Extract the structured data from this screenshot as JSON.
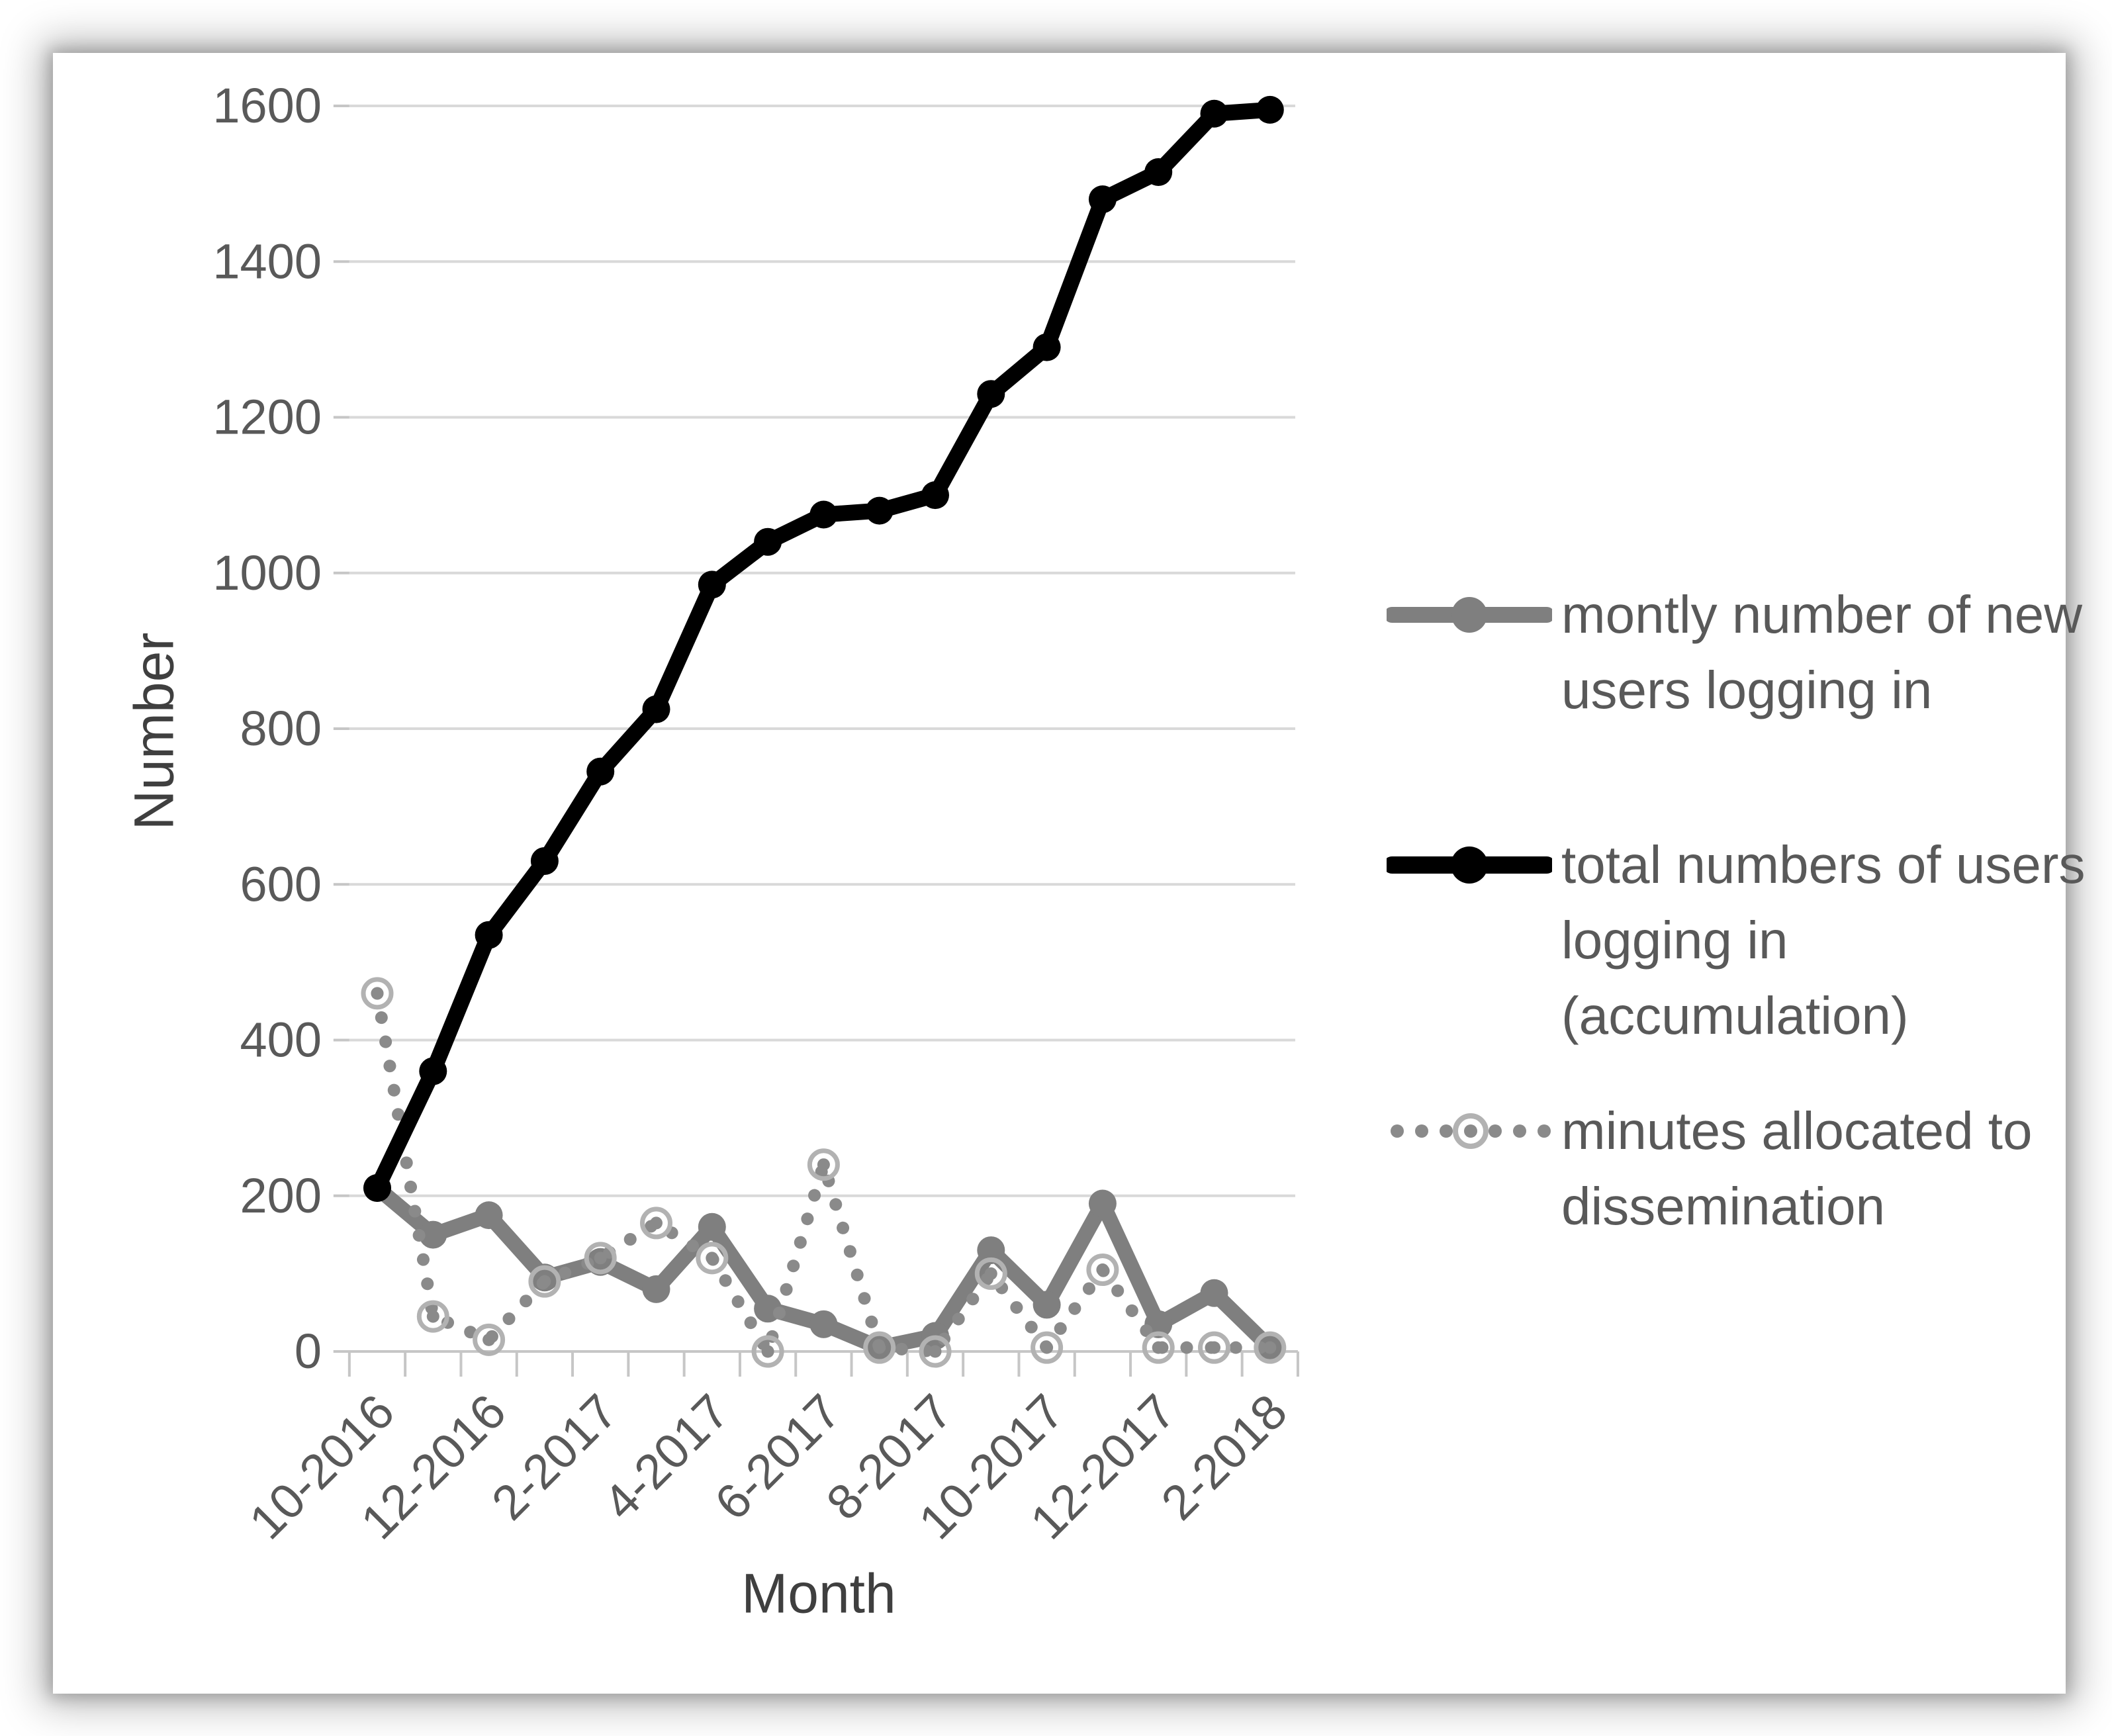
{
  "figure": {
    "kind": "line-chart-figure",
    "background": "#ffffff",
    "text_color_titles": "#3f3f3f",
    "text_color_ticks": "#595959",
    "gridline_color": "#d9d9d9",
    "axisline_color": "#c6c6c6"
  },
  "chart_data": {
    "type": "line",
    "title": "",
    "xlabel": "Month",
    "ylabel": "Number",
    "ylim": [
      0,
      1600
    ],
    "yticks": [
      0,
      200,
      400,
      600,
      800,
      1000,
      1200,
      1400,
      1600
    ],
    "grid": true,
    "legend_position": "right",
    "xtick_shown_every": 2,
    "xtick_labels_shown": [
      "10-2016",
      "12-2016",
      "2-2017",
      "4-2017",
      "6-2017",
      "8-2017",
      "10-2017",
      "12-2017",
      "2-2018"
    ],
    "categories": [
      "10-2016",
      "11-2016",
      "12-2016",
      "1-2017",
      "2-2017",
      "3-2017",
      "4-2017",
      "5-2017",
      "6-2017",
      "7-2017",
      "8-2017",
      "9-2017",
      "10-2017",
      "11-2017",
      "12-2017",
      "1-2018",
      "2-2018"
    ],
    "series": [
      {
        "name": "montly number of new users logging in",
        "style": "solid",
        "color": "#7f7f7f",
        "marker": "filled-circle",
        "values": [
          210,
          150,
          175,
          95,
          115,
          80,
          160,
          55,
          35,
          5,
          20,
          130,
          60,
          190,
          35,
          75,
          5
        ]
      },
      {
        "name": "total numbers of users logging in (accumulation)",
        "style": "solid",
        "color": "#000000",
        "marker": "filled-circle",
        "values": [
          210,
          360,
          535,
          630,
          745,
          825,
          985,
          1040,
          1075,
          1080,
          1100,
          1230,
          1290,
          1480,
          1515,
          1590,
          1595
        ]
      },
      {
        "name": "minutes allocated to dissemination",
        "style": "dotted",
        "color": "#8a8a8a",
        "marker": "open-circle",
        "marker_color": "#b2b2b2",
        "values": [
          460,
          45,
          15,
          90,
          120,
          165,
          120,
          0,
          240,
          5,
          0,
          100,
          5,
          105,
          5,
          5,
          5
        ]
      }
    ]
  }
}
